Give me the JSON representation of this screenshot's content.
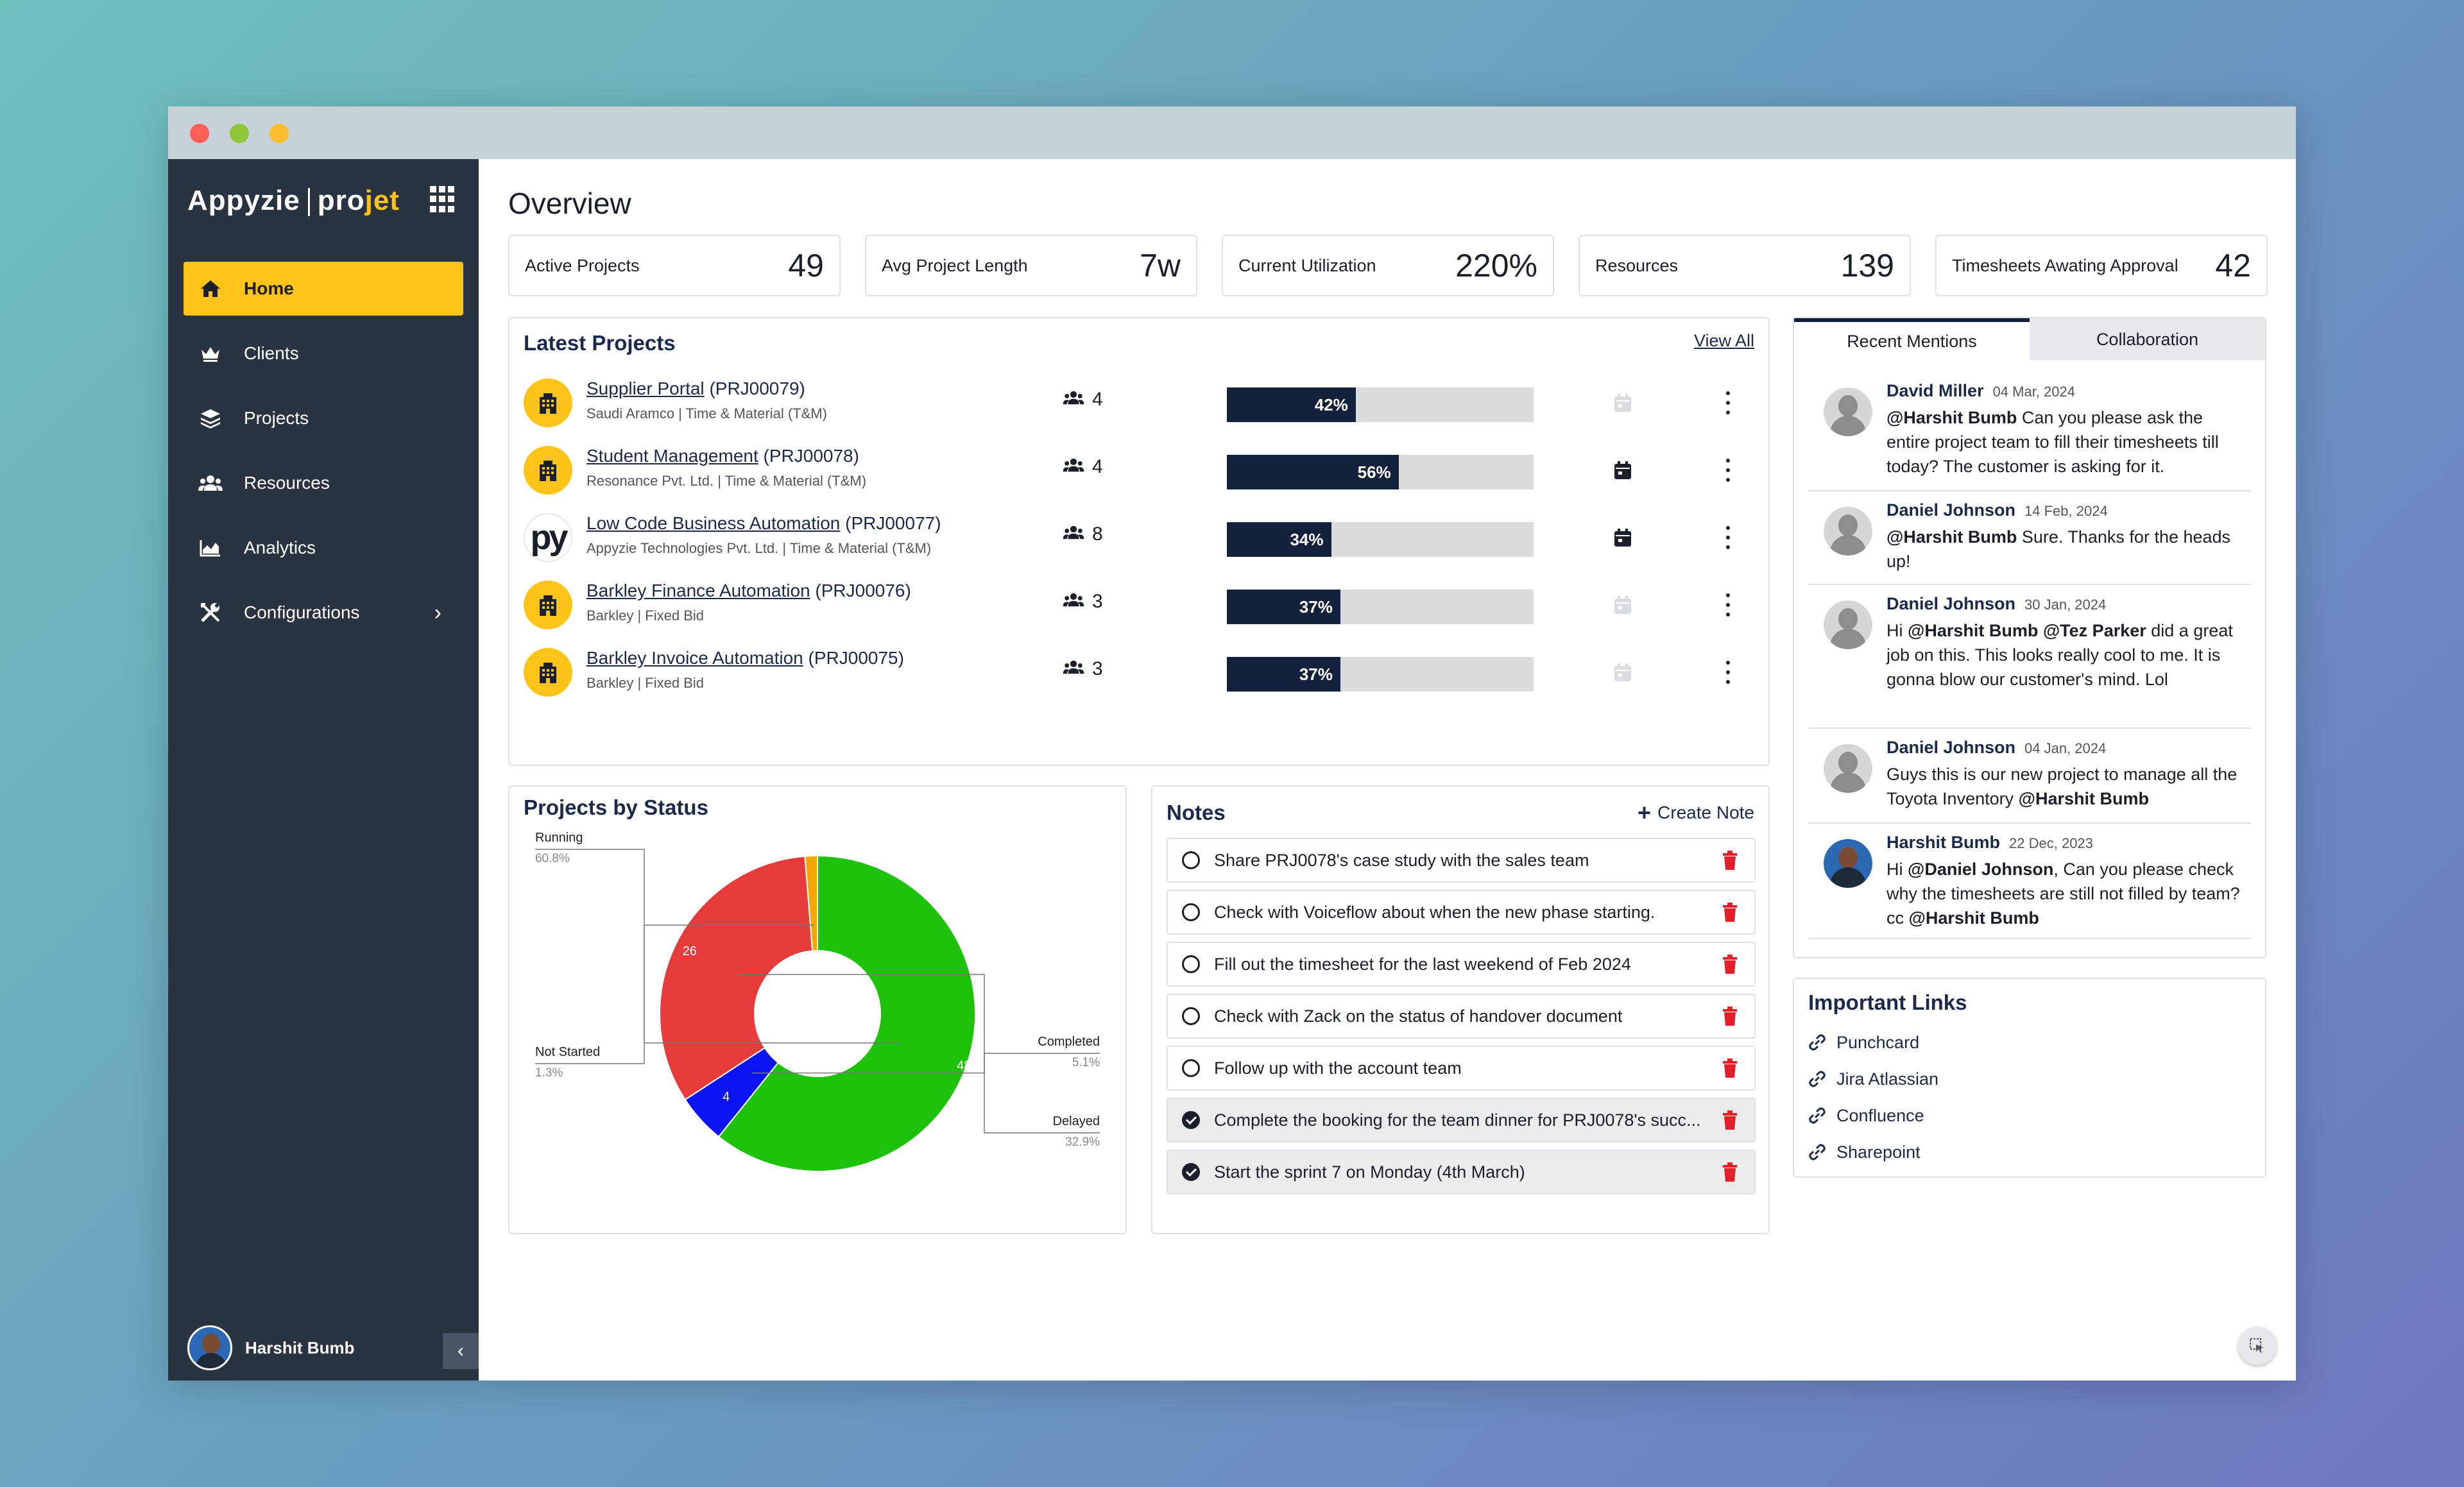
{
  "app": {
    "logo_left": "Appyzie",
    "logo_right_plain": "pro",
    "logo_right_accent": "jet"
  },
  "sidebar": {
    "items": [
      {
        "label": "Home",
        "icon": "home-icon",
        "active": true
      },
      {
        "label": "Clients",
        "icon": "crown-icon"
      },
      {
        "label": "Projects",
        "icon": "layers-icon"
      },
      {
        "label": "Resources",
        "icon": "users-icon"
      },
      {
        "label": "Analytics",
        "icon": "chart-area-icon"
      },
      {
        "label": "Configurations",
        "icon": "tools-icon",
        "has_submenu": true
      }
    ],
    "user_name": "Harshit Bumb"
  },
  "page": {
    "title": "Overview"
  },
  "stats": [
    {
      "label": "Active Projects",
      "value": "49"
    },
    {
      "label": "Avg Project Length",
      "value": "7w"
    },
    {
      "label": "Current Utilization",
      "value": "220%"
    },
    {
      "label": "Resources",
      "value": "139"
    },
    {
      "label": "Timesheets Awating Approval",
      "value": "42"
    }
  ],
  "latest_projects": {
    "title": "Latest Projects",
    "view_all": "View All",
    "rows": [
      {
        "name": "Supplier Portal",
        "code": "(PRJ00079)",
        "client": "Saudi Aramco | Time & Material (T&M)",
        "team": "4",
        "progress": 42,
        "progress_label": "42%",
        "calendar_active": false,
        "logo": "building"
      },
      {
        "name": "Student Management",
        "code": "(PRJ00078)",
        "client": "Resonance Pvt. Ltd. | Time & Material (T&M)",
        "team": "4",
        "progress": 56,
        "progress_label": "56%",
        "calendar_active": true,
        "logo": "building"
      },
      {
        "name": "Low Code Business Automation",
        "code": "(PRJ00077)",
        "client": "Appyzie Technologies Pvt. Ltd. | Time & Material (T&M)",
        "team": "8",
        "progress": 34,
        "progress_label": "34%",
        "calendar_active": true,
        "logo": "py"
      },
      {
        "name": "Barkley Finance Automation",
        "code": "(PRJ00076)",
        "client": "Barkley | Fixed Bid",
        "team": "3",
        "progress": 37,
        "progress_label": "37%",
        "calendar_active": false,
        "logo": "building"
      },
      {
        "name": "Barkley Invoice Automation",
        "code": "(PRJ00075)",
        "client": "Barkley | Fixed Bid",
        "team": "3",
        "progress": 37,
        "progress_label": "37%",
        "calendar_active": false,
        "logo": "building"
      }
    ]
  },
  "projects_by_status": {
    "title": "Projects by Status"
  },
  "chart_data": {
    "type": "pie",
    "donut": true,
    "categories": [
      "Running",
      "Completed",
      "Delayed",
      "Not Started"
    ],
    "values": [
      48,
      4,
      26,
      1
    ],
    "percentages": [
      "60.8%",
      "5.1%",
      "32.9%",
      "1.3%"
    ],
    "data_labels": [
      "48",
      "4",
      "26",
      ""
    ],
    "colors": [
      "#1ec20a",
      "#0a14f0",
      "#e63b3b",
      "#f0a800"
    ]
  },
  "notes": {
    "title": "Notes",
    "create_label": "Create Note",
    "items": [
      {
        "text": "Share PRJ0078's case study with the sales team",
        "done": false
      },
      {
        "text": "Check with Voiceflow about when the new phase starting.",
        "done": false
      },
      {
        "text": "Fill out the timesheet for the last weekend of Feb 2024",
        "done": false
      },
      {
        "text": "Check with Zack on the status of handover document",
        "done": false
      },
      {
        "text": "Follow up with the account team",
        "done": false
      },
      {
        "text": "Complete the booking for the team dinner for PRJ0078's succ...",
        "done": true
      },
      {
        "text": "Start the sprint 7 on Monday (4th March)",
        "done": true
      }
    ]
  },
  "mentions": {
    "tabs": [
      "Recent Mentions",
      "Collaboration"
    ],
    "items": [
      {
        "name": "David Miller",
        "date": "04 Mar, 2024",
        "parts": [
          {
            "b": "@Harshit Bumb"
          },
          {
            "t": " Can you please ask the entire project team to fill their timesheets till today? The customer is asking for it."
          }
        ]
      },
      {
        "name": "Daniel Johnson",
        "date": "14 Feb, 2024",
        "parts": [
          {
            "b": "@Harshit Bumb"
          },
          {
            "t": " Sure. Thanks for the heads up!"
          }
        ]
      },
      {
        "name": "Daniel Johnson",
        "date": "30 Jan, 2024",
        "parts": [
          {
            "t": "Hi "
          },
          {
            "b": "@Harshit Bumb @Tez Parker"
          },
          {
            "t": " did a great job on this. This looks really cool to me. It is gonna blow our customer's mind. Lol"
          }
        ]
      },
      {
        "name": "Daniel Johnson",
        "date": "04 Jan, 2024",
        "parts": [
          {
            "t": "Guys this is our new project to manage all the Toyota Inventory "
          },
          {
            "b": "@Harshit Bumb"
          }
        ]
      },
      {
        "name": "Harshit Bumb",
        "date": "22 Dec, 2023",
        "parts": [
          {
            "t": "Hi "
          },
          {
            "b": "@Daniel Johnson"
          },
          {
            "t": ", Can you please check why the timesheets are still not filled by team? cc "
          },
          {
            "b": "@Harshit Bumb"
          }
        ]
      }
    ]
  },
  "important_links": {
    "title": "Important Links",
    "items": [
      "Punchcard",
      "Jira Atlassian",
      "Confluence",
      "Sharepoint"
    ]
  }
}
